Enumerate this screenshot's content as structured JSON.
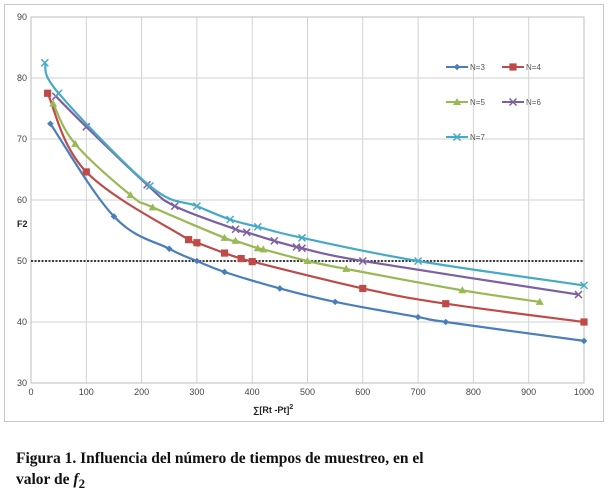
{
  "chart_data": {
    "type": "line",
    "title": "",
    "xlabel": "∑[Rt  -Pt]",
    "xlabel_superscript": "2",
    "ylabel": "F2",
    "xlim": [
      0,
      1000
    ],
    "ylim": [
      30,
      90
    ],
    "xticks": [
      0,
      100,
      200,
      300,
      400,
      500,
      600,
      700,
      800,
      900,
      1000
    ],
    "yticks": [
      30,
      40,
      50,
      60,
      70,
      80,
      90
    ],
    "grid": true,
    "legend_position": "right",
    "reference_line": {
      "y": 50,
      "style": "dotted",
      "color": "#000000"
    },
    "series": [
      {
        "name": "N=3",
        "color": "#4a7ebb",
        "marker": "diamond",
        "points": [
          [
            35,
            72.5
          ],
          [
            150,
            57.3
          ],
          [
            250,
            52.0
          ],
          [
            300,
            50.0
          ],
          [
            350,
            48.2
          ],
          [
            450,
            45.5
          ],
          [
            550,
            43.3
          ],
          [
            700,
            40.8
          ],
          [
            750,
            40.0
          ],
          [
            1000,
            36.9
          ]
        ]
      },
      {
        "name": "N=4",
        "color": "#be4b48",
        "marker": "square",
        "points": [
          [
            30,
            77.5
          ],
          [
            100,
            64.6
          ],
          [
            285,
            53.5
          ],
          [
            300,
            53.0
          ],
          [
            350,
            51.3
          ],
          [
            380,
            50.4
          ],
          [
            400,
            49.9
          ],
          [
            600,
            45.5
          ],
          [
            750,
            43.0
          ],
          [
            1000,
            40.0
          ]
        ]
      },
      {
        "name": "N=5",
        "color": "#98b954",
        "marker": "triangle",
        "points": [
          [
            40,
            75.8
          ],
          [
            80,
            69.2
          ],
          [
            180,
            60.8
          ],
          [
            220,
            58.8
          ],
          [
            350,
            53.8
          ],
          [
            370,
            53.3
          ],
          [
            410,
            52.1
          ],
          [
            420,
            51.9
          ],
          [
            500,
            50.0
          ],
          [
            570,
            48.7
          ],
          [
            780,
            45.2
          ],
          [
            920,
            43.3
          ]
        ]
      },
      {
        "name": "N=6",
        "color": "#7d60a0",
        "marker": "x",
        "points": [
          [
            45,
            77.0
          ],
          [
            100,
            72.0
          ],
          [
            210,
            62.5
          ],
          [
            260,
            59.0
          ],
          [
            370,
            55.2
          ],
          [
            390,
            54.7
          ],
          [
            440,
            53.3
          ],
          [
            480,
            52.3
          ],
          [
            490,
            52.1
          ],
          [
            600,
            50.0
          ],
          [
            990,
            44.5
          ]
        ]
      },
      {
        "name": "N=7",
        "color": "#46aac5",
        "marker": "x",
        "points": [
          [
            25,
            82.5
          ],
          [
            50,
            77.5
          ],
          [
            215,
            62.3
          ],
          [
            300,
            59.0
          ],
          [
            360,
            56.8
          ],
          [
            410,
            55.6
          ],
          [
            490,
            53.8
          ],
          [
            700,
            50.0
          ],
          [
            1000,
            46.0
          ]
        ]
      }
    ]
  },
  "caption": {
    "line1": "Figura 1. Influencia del número de tiempos de muestreo, en el",
    "line2_prefix": "valor de ",
    "line2_var": "f",
    "line2_sub": "2"
  }
}
